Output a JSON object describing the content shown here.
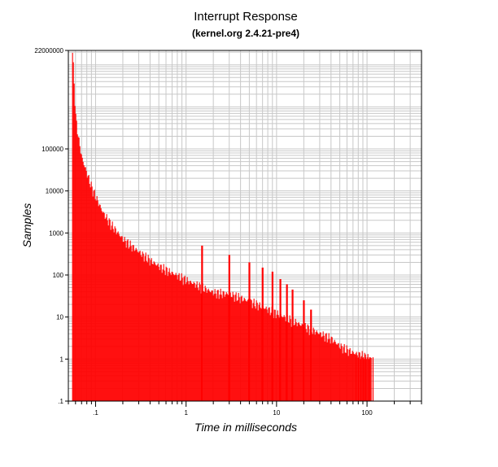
{
  "chart_data": {
    "type": "bar",
    "title": "Interrupt Response",
    "subtitle": "(kernel.org 2.4.21-pre4)",
    "xlabel": "Time in milliseconds",
    "ylabel": "Samples",
    "x_scale": "log",
    "y_scale": "log",
    "xlim": [
      0.05,
      400
    ],
    "ylim": [
      0.1,
      22000000
    ],
    "grid": true,
    "bar_color": "#ff0000",
    "x_ticks": [
      {
        "value": 0.1,
        "label": ".1"
      },
      {
        "value": 1,
        "label": "1"
      },
      {
        "value": 10,
        "label": "10"
      },
      {
        "value": 100,
        "label": "100"
      }
    ],
    "y_ticks": [
      {
        "value": 22000000,
        "label": "22000000"
      },
      {
        "value": 100000,
        "label": "100000"
      },
      {
        "value": 10000,
        "label": "10000"
      },
      {
        "value": 1000,
        "label": "1000"
      },
      {
        "value": 100,
        "label": "100"
      },
      {
        "value": 10,
        "label": "10"
      },
      {
        "value": 1,
        "label": "1"
      },
      {
        "value": 0.1,
        "label": ".1"
      }
    ],
    "envelope": [
      {
        "x": 0.055,
        "y": 22000000
      },
      {
        "x": 0.06,
        "y": 500000
      },
      {
        "x": 0.065,
        "y": 150000
      },
      {
        "x": 0.07,
        "y": 60000
      },
      {
        "x": 0.08,
        "y": 25000
      },
      {
        "x": 0.09,
        "y": 12000
      },
      {
        "x": 0.1,
        "y": 7000
      },
      {
        "x": 0.12,
        "y": 3000
      },
      {
        "x": 0.15,
        "y": 1500
      },
      {
        "x": 0.2,
        "y": 700
      },
      {
        "x": 0.3,
        "y": 350
      },
      {
        "x": 0.4,
        "y": 220
      },
      {
        "x": 0.5,
        "y": 160
      },
      {
        "x": 0.7,
        "y": 110
      },
      {
        "x": 1,
        "y": 75
      },
      {
        "x": 1.5,
        "y": 50
      },
      {
        "x": 2,
        "y": 38
      },
      {
        "x": 3,
        "y": 35
      },
      {
        "x": 4,
        "y": 28
      },
      {
        "x": 6,
        "y": 20
      },
      {
        "x": 8,
        "y": 15
      },
      {
        "x": 10,
        "y": 12
      },
      {
        "x": 15,
        "y": 8
      },
      {
        "x": 20,
        "y": 6
      },
      {
        "x": 30,
        "y": 4
      },
      {
        "x": 40,
        "y": 3
      },
      {
        "x": 50,
        "y": 2
      },
      {
        "x": 70,
        "y": 1.4
      },
      {
        "x": 100,
        "y": 1.1
      },
      {
        "x": 110,
        "y": 1
      }
    ],
    "spikes": [
      {
        "x": 1.5,
        "y": 500
      },
      {
        "x": 3,
        "y": 300
      },
      {
        "x": 5,
        "y": 200
      },
      {
        "x": 7,
        "y": 150
      },
      {
        "x": 9,
        "y": 120
      },
      {
        "x": 11,
        "y": 80
      },
      {
        "x": 13,
        "y": 60
      },
      {
        "x": 15,
        "y": 45
      },
      {
        "x": 20,
        "y": 25
      },
      {
        "x": 24,
        "y": 15
      }
    ]
  }
}
